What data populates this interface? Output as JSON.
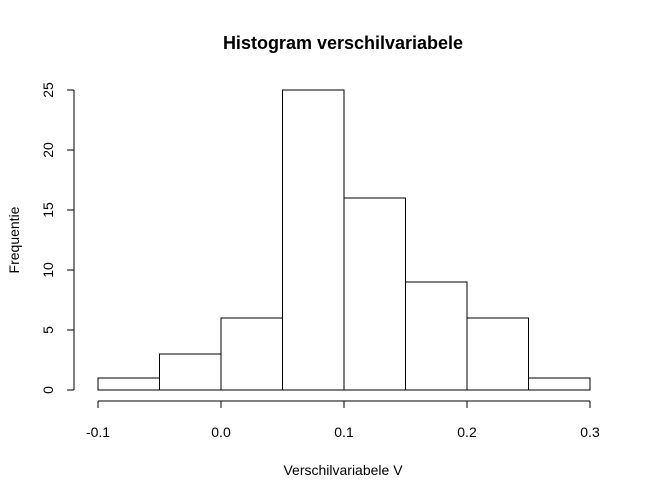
{
  "chart_data": {
    "type": "bar",
    "title": "Histogram verschilvariabele",
    "xlabel": "Verschilvariabele V",
    "ylabel": "Frequentie",
    "bins": [
      {
        "start": -0.1,
        "end": -0.05,
        "count": 1
      },
      {
        "start": -0.05,
        "end": 0.0,
        "count": 3
      },
      {
        "start": 0.0,
        "end": 0.05,
        "count": 6
      },
      {
        "start": 0.05,
        "end": 0.1,
        "count": 25
      },
      {
        "start": 0.1,
        "end": 0.15,
        "count": 16
      },
      {
        "start": 0.15,
        "end": 0.2,
        "count": 9
      },
      {
        "start": 0.2,
        "end": 0.25,
        "count": 6
      },
      {
        "start": 0.25,
        "end": 0.3,
        "count": 1
      }
    ],
    "xlim": [
      -0.1,
      0.3
    ],
    "ylim": [
      0,
      25
    ],
    "x_ticks": [
      {
        "value": -0.1,
        "label": "-0.1"
      },
      {
        "value": 0.0,
        "label": "0.0"
      },
      {
        "value": 0.1,
        "label": "0.1"
      },
      {
        "value": 0.2,
        "label": "0.2"
      },
      {
        "value": 0.3,
        "label": "0.3"
      }
    ],
    "y_ticks": [
      {
        "value": 0,
        "label": "0"
      },
      {
        "value": 5,
        "label": "5"
      },
      {
        "value": 10,
        "label": "10"
      },
      {
        "value": 15,
        "label": "15"
      },
      {
        "value": 20,
        "label": "20"
      },
      {
        "value": 25,
        "label": "25"
      }
    ],
    "grid": false,
    "bar_fill": "#ffffff",
    "bar_stroke": "#000000"
  }
}
